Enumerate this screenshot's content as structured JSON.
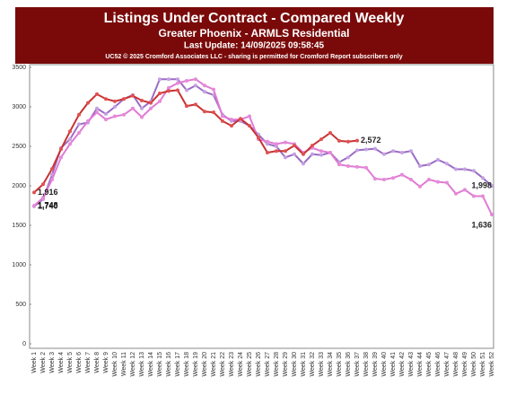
{
  "chart_data": {
    "type": "line",
    "title": "Listings Under Contract - Compared Weekly",
    "subtitle": "Greater Phoenix - ARMLS Residential",
    "update": "Last Update: 14/09/2025 09:58:45",
    "credit": "UC52 © 2025 Cromford Associates LLC - sharing is permitted for Cromford Report subscribers only",
    "categories": [
      "Week 1",
      "Week 2",
      "Week 3",
      "Week 4",
      "Week 5",
      "Week 6",
      "Week 7",
      "Week 8",
      "Week 9",
      "Week 10",
      "Week 11",
      "Week 12",
      "Week 13",
      "Week 14",
      "Week 15",
      "Week 16",
      "Week 17",
      "Week 18",
      "Week 19",
      "Week 20",
      "Week 21",
      "Week 22",
      "Week 23",
      "Week 24",
      "Week 25",
      "Week 26",
      "Week 27",
      "Week 28",
      "Week 29",
      "Week 30",
      "Week 31",
      "Week 32",
      "Week 33",
      "Week 34",
      "Week 35",
      "Week 36",
      "Week 37",
      "Week 38",
      "Week 39",
      "Week 40",
      "Week 41",
      "Week 42",
      "Week 43",
      "Week 44",
      "Week 45",
      "Week 46",
      "Week 47",
      "Week 48",
      "Week 49",
      "Week 50",
      "Week 51",
      "Week 52"
    ],
    "series": [
      {
        "color": "#c4a0e0",
        "marker": "#9b6cc4",
        "line": "#9b6cc4",
        "values": [
          1740,
          1830,
          2140,
          2480,
          2590,
          2780,
          2800,
          2980,
          2910,
          3000,
          3100,
          3150,
          2980,
          3070,
          3350,
          3350,
          3350,
          3210,
          3270,
          3190,
          3150,
          2900,
          2820,
          2820,
          2760,
          2650,
          2530,
          2500,
          2360,
          2400,
          2280,
          2400,
          2390,
          2420,
          2300,
          2360,
          2450,
          2460,
          2470,
          2400,
          2440,
          2420,
          2440,
          2250,
          2270,
          2330,
          2280,
          2210,
          2210,
          2190,
          2100,
          1998
        ],
        "value_labels": [
          "1,740",
          null,
          null,
          null,
          null,
          null,
          null,
          null,
          null,
          null,
          null,
          null,
          null,
          null,
          null,
          null,
          null,
          null,
          null,
          null,
          null,
          null,
          null,
          null,
          null,
          null,
          null,
          null,
          null,
          null,
          null,
          null,
          null,
          null,
          null,
          null,
          null,
          null,
          null,
          null,
          null,
          null,
          null,
          null,
          null,
          null,
          null,
          null,
          null,
          null,
          null,
          "1,998"
        ]
      },
      {
        "color": "#e58ad8",
        "line": "#e07ad4",
        "values": [
          1748,
          1850,
          2080,
          2360,
          2530,
          2670,
          2820,
          2930,
          2840,
          2880,
          2900,
          2980,
          2870,
          2980,
          3070,
          3240,
          3300,
          3330,
          3350,
          3270,
          3220,
          2880,
          2840,
          2840,
          2880,
          2590,
          2560,
          2530,
          2550,
          2530,
          2420,
          2480,
          2440,
          2420,
          2270,
          2250,
          2240,
          2230,
          2090,
          2080,
          2100,
          2140,
          2080,
          1990,
          2080,
          2050,
          2040,
          1900,
          1950,
          1870,
          1870,
          1636
        ],
        "value_labels": [
          "1,748",
          null,
          null,
          null,
          null,
          null,
          null,
          null,
          null,
          null,
          null,
          null,
          null,
          null,
          null,
          null,
          null,
          null,
          null,
          null,
          null,
          null,
          null,
          null,
          null,
          null,
          null,
          null,
          null,
          null,
          null,
          null,
          null,
          null,
          null,
          null,
          null,
          null,
          null,
          null,
          null,
          null,
          null,
          null,
          null,
          null,
          null,
          null,
          null,
          null,
          null,
          "1,636"
        ]
      },
      {
        "color": "#e05050",
        "line": "#c83232",
        "values": [
          1916,
          2020,
          2215,
          2465,
          2690,
          2900,
          3050,
          3160,
          3100,
          3070,
          3100,
          3140,
          3080,
          3050,
          3170,
          3200,
          3210,
          3010,
          3030,
          2940,
          2930,
          2820,
          2760,
          2850,
          2760,
          2610,
          2420,
          2440,
          2440,
          2510,
          2400,
          2510,
          2590,
          2670,
          2570,
          2560,
          2572,
          null,
          null,
          null,
          null,
          null,
          null,
          null,
          null,
          null,
          null,
          null,
          null,
          null,
          null,
          null
        ],
        "value_labels": [
          "1,916",
          null,
          null,
          null,
          null,
          null,
          null,
          null,
          null,
          null,
          null,
          null,
          null,
          null,
          null,
          null,
          null,
          null,
          null,
          null,
          null,
          null,
          null,
          null,
          null,
          null,
          null,
          null,
          null,
          null,
          null,
          null,
          null,
          null,
          null,
          null,
          "2,572",
          null,
          null,
          null,
          null,
          null,
          null,
          null,
          null,
          null,
          null,
          null,
          null,
          null,
          null,
          null
        ]
      }
    ],
    "ylim": [
      0,
      3500
    ],
    "yticks": [
      0,
      500,
      1000,
      1500,
      2000,
      2500,
      3000,
      3500
    ],
    "grid": false
  }
}
